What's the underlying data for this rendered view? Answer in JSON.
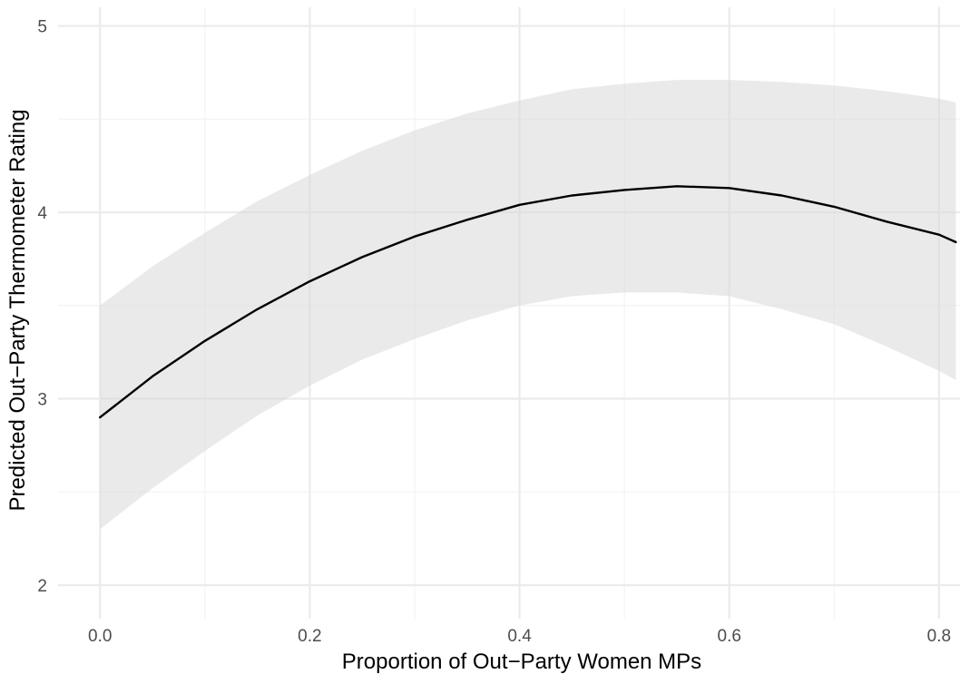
{
  "chart_data": {
    "type": "line",
    "title": "",
    "xlabel": "Proportion of Out−Party Women MPs",
    "ylabel": "Predicted Out−Party Thermometer Rating",
    "xlim": [
      -0.04,
      0.82
    ],
    "ylim": [
      1.82,
      5.1
    ],
    "x_ticks": [
      0.0,
      0.2,
      0.4,
      0.6,
      0.8
    ],
    "x_tick_labels": [
      "0.0",
      "0.2",
      "0.4",
      "0.6",
      "0.8"
    ],
    "y_ticks": [
      2,
      3,
      4,
      5
    ],
    "y_tick_labels": [
      "2",
      "3",
      "4",
      "5"
    ],
    "x_minor_ticks": [
      0.1,
      0.3,
      0.5,
      0.7
    ],
    "y_minor_ticks": [
      2.5,
      3.5,
      4.5
    ],
    "grid": true,
    "series": [
      {
        "line_color": "#000000",
        "band_color": "#d9d9d9",
        "x": [
          0.0,
          0.05,
          0.1,
          0.15,
          0.2,
          0.25,
          0.3,
          0.35,
          0.4,
          0.45,
          0.5,
          0.55,
          0.6,
          0.65,
          0.7,
          0.75,
          0.8,
          0.816
        ],
        "y": [
          2.9,
          3.12,
          3.31,
          3.48,
          3.63,
          3.76,
          3.87,
          3.96,
          4.04,
          4.09,
          4.12,
          4.14,
          4.13,
          4.09,
          4.03,
          3.95,
          3.88,
          3.84
        ],
        "lower": [
          2.3,
          2.52,
          2.72,
          2.91,
          3.07,
          3.21,
          3.32,
          3.42,
          3.5,
          3.55,
          3.57,
          3.57,
          3.55,
          3.48,
          3.4,
          3.28,
          3.15,
          3.1
        ],
        "upper": [
          3.5,
          3.71,
          3.89,
          4.06,
          4.2,
          4.33,
          4.44,
          4.53,
          4.6,
          4.66,
          4.69,
          4.71,
          4.71,
          4.7,
          4.68,
          4.65,
          4.61,
          4.59
        ]
      }
    ]
  }
}
